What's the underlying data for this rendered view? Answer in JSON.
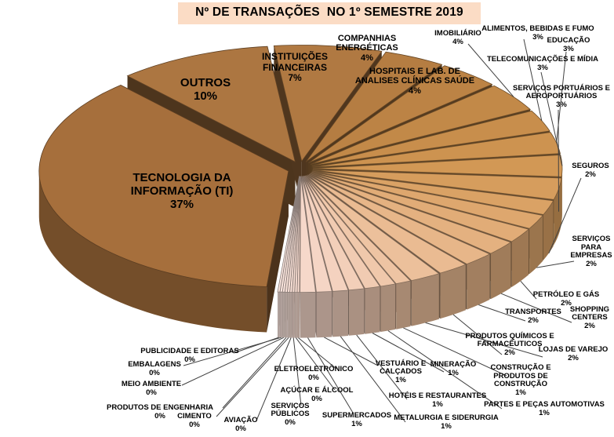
{
  "title": "Nº DE TRANSAÇÕES  NO 1º SEMESTRE 2019",
  "colors": {
    "page_bg": "#FFFFFF",
    "title_bg": "#FBDCC5",
    "leader_line": "#404040",
    "big_slice_brown": "#A66F3C",
    "fan_gradient_start": "#B57D42",
    "fan_gradient_end": "#FBE6DF"
  },
  "chart_data": {
    "type": "pie",
    "style": "3d-exploded",
    "title": "Nº DE TRANSAÇÕES NO 1º SEMESTRE 2019",
    "unit": "%",
    "legend_position": "none",
    "labels_show": "name+percent",
    "order": "clockwise",
    "slices": [
      {
        "label": "TECNOLOGIA DA\nINFORMAÇÃO (TI)",
        "pct_label": "37%",
        "value": 37,
        "color": "#A66F3C"
      },
      {
        "label": "OUTROS",
        "pct_label": "10%",
        "value": 10,
        "color": "#AC7641"
      },
      {
        "label": "INSTITUIÇÕES\nFINANCEIRAS",
        "pct_label": "7%",
        "value": 7,
        "color": "#B07942"
      },
      {
        "label": "COMPANHIAS\nENERGÉTICAS",
        "pct_label": "4%",
        "value": 4,
        "color": "#B57D42"
      },
      {
        "label": "HOSPITAIS E LAB. DE\nANALISES CLÍNICAS SAÚDE",
        "pct_label": "4%",
        "value": 4,
        "color": "#BC8345"
      },
      {
        "label": "IMOBILIÁRIO",
        "pct_label": "4%",
        "value": 4,
        "color": "#C28948"
      },
      {
        "label": "ALIMENTOS, BEBIDAS E FUMO",
        "pct_label": "3%",
        "value": 3,
        "color": "#C88E4C"
      },
      {
        "label": "EDUCAÇÃO",
        "pct_label": "3%",
        "value": 3,
        "color": "#CD9350"
      },
      {
        "label": "TELECOMUNICAÇÕES E MÍDIA",
        "pct_label": "3%",
        "value": 3,
        "color": "#D29855"
      },
      {
        "label": "SERVIÇOS PORTUÁRIOS E\nAEROPORTUÁRIOS",
        "pct_label": "3%",
        "value": 3,
        "color": "#D69D5D"
      },
      {
        "label": "SEGUROS",
        "pct_label": "2%",
        "value": 2,
        "color": "#DAA265"
      },
      {
        "label": "SERVIÇOS\nPARA\nEMPRESAS",
        "pct_label": "2%",
        "value": 2,
        "color": "#DEA76E"
      },
      {
        "label": "PETRÓLEO E GÁS",
        "pct_label": "2%",
        "value": 2,
        "color": "#E1AC77"
      },
      {
        "label": "SHOPPING\nCENTERS",
        "pct_label": "2%",
        "value": 2,
        "color": "#E4B180"
      },
      {
        "label": "TRANSPORTES",
        "pct_label": "2%",
        "value": 2,
        "color": "#E7B689"
      },
      {
        "label": "PRODUTOS QUÍMICOS E\nFARMACÊUTICOS",
        "pct_label": "2%",
        "value": 2,
        "color": "#EABB92"
      },
      {
        "label": "LOJAS DE VAREJO",
        "pct_label": "2%",
        "value": 2,
        "color": "#ECC09B"
      },
      {
        "label": "CONSTRUÇÃO E\nPRODUTOS DE\nCONSTRUÇÃO",
        "pct_label": "1%",
        "value": 1,
        "color": "#EEC4A3"
      },
      {
        "label": "PARTES E PEÇAS AUTOMOTIVAS",
        "pct_label": "1%",
        "value": 1,
        "color": "#F0C8AB"
      },
      {
        "label": "MINERAÇÃO",
        "pct_label": "1%",
        "value": 1,
        "color": "#F1CBB2"
      },
      {
        "label": "HOTÉIS E RESTAURANTES",
        "pct_label": "1%",
        "value": 1,
        "color": "#F3CFB9"
      },
      {
        "label": "METALURGIA E SIDERURGIA",
        "pct_label": "1%",
        "value": 1,
        "color": "#F4D2BF"
      },
      {
        "label": "VESTUÁRIO E\nCALÇADOS",
        "pct_label": "1%",
        "value": 1,
        "color": "#F5D5C5"
      },
      {
        "label": "SUPERMERCADOS",
        "pct_label": "1%",
        "value": 1,
        "color": "#F6D8CA"
      },
      {
        "label": "ELETROELETRÔNICO",
        "pct_label": "0%",
        "value": 0,
        "color": "#F7DACE"
      },
      {
        "label": "AÇÚCAR E ÁLCOOL",
        "pct_label": "0%",
        "value": 0,
        "color": "#F7DCD1"
      },
      {
        "label": "SERVIÇOS\nPÚBLICOS",
        "pct_label": "0%",
        "value": 0,
        "color": "#F8DED3"
      },
      {
        "label": "AVIAÇÃO",
        "pct_label": "0%",
        "value": 0,
        "color": "#F9E0D6"
      },
      {
        "label": "CIMENTO",
        "pct_label": "0%",
        "value": 0,
        "color": "#F9E1D8"
      },
      {
        "label": "PRODUTOS DE ENGENHARIA",
        "pct_label": "0%",
        "value": 0,
        "color": "#FAE3DA"
      },
      {
        "label": "MEIO AMBIENTE",
        "pct_label": "0%",
        "value": 0,
        "color": "#FAE4DC"
      },
      {
        "label": "EMBALAGENS",
        "pct_label": "0%",
        "value": 0,
        "color": "#FBE5DD"
      },
      {
        "label": "PUBLICIDADE E EDITORAS",
        "pct_label": "0%",
        "value": 0,
        "color": "#FBE6DF"
      }
    ]
  }
}
